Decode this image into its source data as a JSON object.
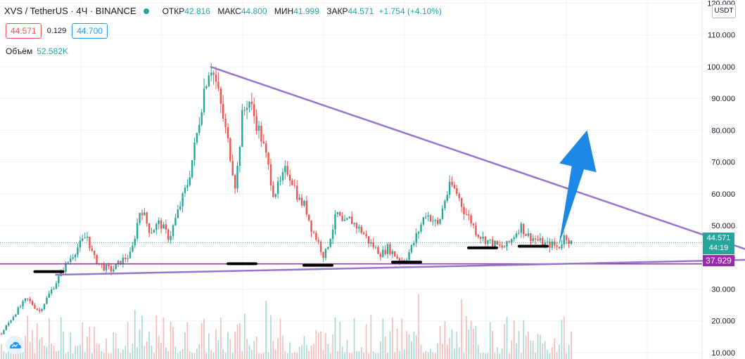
{
  "header": {
    "symbol": "XVS / TetherUS · 4Ч · BINANCE",
    "status_color": "#26a69a",
    "ohlc": {
      "open_label": "ОТКР",
      "open": "42.816",
      "high_label": "МАКС",
      "high": "44.800",
      "low_label": "МИН",
      "low": "41.999",
      "close_label": "ЗАКР",
      "close": "44.571",
      "change": "+1.754 (+4.10%)"
    },
    "sell_price": "44.571",
    "spread": "0.129",
    "buy_price": "44.700",
    "volume_label": "Объём",
    "volume_value": "52.582K"
  },
  "axis": {
    "currency": "USDT",
    "last_price": "44.571",
    "countdown": "44:19",
    "level_price": "37.929"
  },
  "colors": {
    "up": "#26a69a",
    "down": "#ef5350",
    "trendline": "#9575cd",
    "level": "#9c27b0",
    "arrow": "#1e88e5",
    "support_marks": "#000000"
  },
  "chart_data": {
    "type": "candlestick",
    "title": "XVS / TetherUS · 4Ч · BINANCE",
    "y_axis": {
      "ticks": [
        10,
        20,
        30,
        40,
        50,
        60,
        70,
        80,
        90,
        100,
        110,
        120
      ],
      "tick_labels": [
        "10.000",
        "20.000",
        "30.000",
        "40.000",
        "50.000",
        "60.000",
        "70.000",
        "80.000",
        "90.000",
        "100.000",
        "110.000",
        "120.000"
      ],
      "range": [
        8,
        121
      ]
    },
    "x_axis": {
      "ticks": [],
      "range": [
        0,
        180
      ]
    },
    "grid": true,
    "price_path": [
      [
        0,
        16
      ],
      [
        4,
        22
      ],
      [
        8,
        27
      ],
      [
        12,
        23
      ],
      [
        16,
        30
      ],
      [
        20,
        37
      ],
      [
        24,
        43
      ],
      [
        27,
        47
      ],
      [
        29,
        40
      ],
      [
        32,
        37
      ],
      [
        35,
        36
      ],
      [
        38,
        39
      ],
      [
        41,
        41
      ],
      [
        44,
        56
      ],
      [
        47,
        48
      ],
      [
        50,
        51
      ],
      [
        53,
        46
      ],
      [
        56,
        55
      ],
      [
        59,
        64
      ],
      [
        62,
        80
      ],
      [
        64,
        93
      ],
      [
        66,
        101
      ],
      [
        68,
        94
      ],
      [
        70,
        84
      ],
      [
        72,
        74
      ],
      [
        74,
        62
      ],
      [
        76,
        84
      ],
      [
        78,
        90
      ],
      [
        80,
        84
      ],
      [
        82,
        78
      ],
      [
        84,
        70
      ],
      [
        86,
        60
      ],
      [
        88,
        63
      ],
      [
        90,
        68
      ],
      [
        92,
        64
      ],
      [
        94,
        58
      ],
      [
        96,
        56
      ],
      [
        98,
        49
      ],
      [
        100,
        45
      ],
      [
        102,
        40
      ],
      [
        104,
        47
      ],
      [
        106,
        54
      ],
      [
        108,
        50
      ],
      [
        110,
        52
      ],
      [
        112,
        50
      ],
      [
        114,
        48
      ],
      [
        116,
        45
      ],
      [
        118,
        43
      ],
      [
        120,
        41
      ],
      [
        122,
        43
      ],
      [
        124,
        41
      ],
      [
        126,
        39
      ],
      [
        128,
        40
      ],
      [
        130,
        44
      ],
      [
        132,
        49
      ],
      [
        134,
        54
      ],
      [
        136,
        52
      ],
      [
        138,
        50
      ],
      [
        140,
        58
      ],
      [
        142,
        63
      ],
      [
        144,
        60
      ],
      [
        146,
        55
      ],
      [
        148,
        52
      ],
      [
        150,
        48
      ],
      [
        152,
        46
      ],
      [
        154,
        45
      ],
      [
        156,
        44
      ],
      [
        158,
        43
      ],
      [
        160,
        44
      ],
      [
        162,
        47
      ],
      [
        164,
        50
      ],
      [
        166,
        47
      ],
      [
        168,
        46
      ],
      [
        170,
        45
      ],
      [
        172,
        44
      ],
      [
        174,
        44
      ],
      [
        176,
        43
      ],
      [
        178,
        47
      ],
      [
        180,
        44.571
      ]
    ],
    "volume_bars": 240,
    "drawings": {
      "descending_trendline": [
        [
          66,
          100
        ],
        [
          176,
          43.5
        ]
      ],
      "descending_trendline_extended": [
        [
          66,
          100
        ],
        [
          300,
          20.5
        ]
      ],
      "ascending_trendline": [
        [
          17,
          34.5
        ],
        [
          300,
          40.6
        ]
      ],
      "horizontal_level": 37.929,
      "support_marks": [
        [
          15,
          35.5
        ],
        [
          76,
          38.0
        ],
        [
          100,
          37.5
        ],
        [
          128,
          38.5
        ],
        [
          152,
          43.0
        ],
        [
          168,
          43.5
        ]
      ],
      "arrow": {
        "from": [
          176,
          43.5
        ],
        "to": [
          185,
          80
        ]
      }
    }
  }
}
